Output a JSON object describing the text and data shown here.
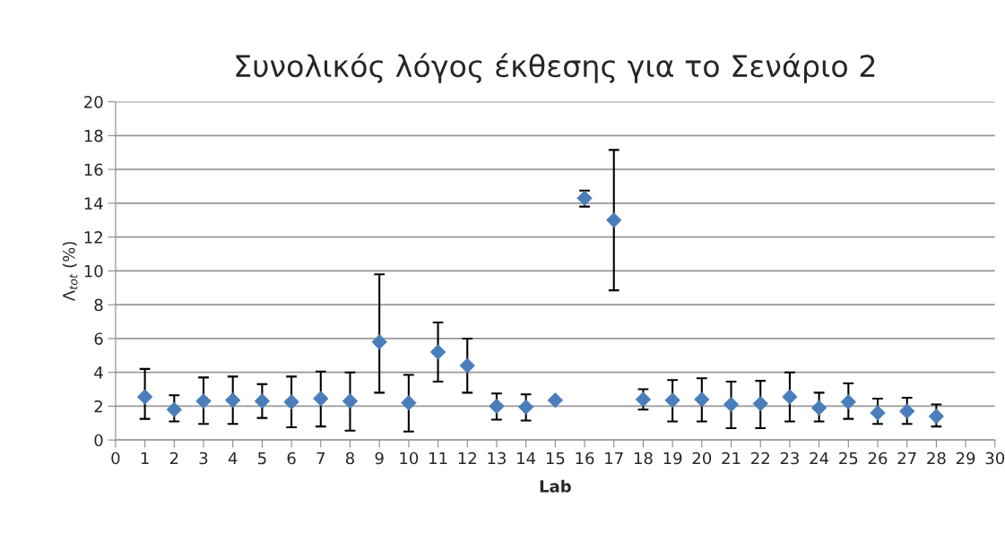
{
  "chart_data": {
    "type": "scatter",
    "title": "Συνολικός λόγος έκθεσης για το Σενάριο 2",
    "xlabel": "Lab",
    "ylabel": "Λ$_{tot}$ (%)",
    "x": [
      1,
      2,
      3,
      4,
      5,
      6,
      7,
      8,
      9,
      10,
      11,
      12,
      13,
      14,
      15,
      16,
      17,
      18,
      19,
      20,
      21,
      22,
      23,
      24,
      25,
      26,
      27,
      28
    ],
    "series": [
      {
        "color": "#4a7ebb",
        "values": [
          2.55,
          1.8,
          2.3,
          2.35,
          2.3,
          2.25,
          2.45,
          2.3,
          5.8,
          2.2,
          5.2,
          4.4,
          2.0,
          1.95,
          2.35,
          14.3,
          13.0,
          2.4,
          2.35,
          2.4,
          2.1,
          2.15,
          2.55,
          1.9,
          2.25,
          1.6,
          1.7,
          1.4
        ],
        "errors": [
          [
            1.25,
            4.2
          ],
          [
            1.1,
            2.65
          ],
          [
            0.95,
            3.7
          ],
          [
            0.95,
            3.75
          ],
          [
            1.3,
            3.3
          ],
          [
            0.75,
            3.75
          ],
          [
            0.8,
            4.05
          ],
          [
            0.55,
            4.0
          ],
          [
            2.8,
            9.8
          ],
          [
            0.5,
            3.85
          ],
          [
            3.45,
            6.95
          ],
          [
            2.8,
            6.0
          ],
          [
            1.2,
            2.75
          ],
          [
            1.15,
            2.7
          ],
          null,
          [
            13.8,
            14.75
          ],
          [
            8.85,
            17.15
          ],
          [
            1.8,
            3.0
          ],
          [
            1.1,
            3.55
          ],
          [
            1.1,
            3.65
          ],
          [
            0.7,
            3.45
          ],
          [
            0.7,
            3.5
          ],
          [
            1.1,
            4.0
          ],
          [
            1.1,
            2.8
          ],
          [
            1.25,
            3.35
          ],
          [
            0.95,
            2.45
          ],
          [
            0.95,
            2.5
          ],
          [
            0.8,
            2.1
          ]
        ]
      }
    ],
    "xlim": [
      0,
      30
    ],
    "xticks": [
      0,
      1,
      2,
      3,
      4,
      5,
      6,
      7,
      8,
      9,
      10,
      11,
      12,
      13,
      14,
      15,
      16,
      17,
      18,
      19,
      20,
      21,
      22,
      23,
      24,
      25,
      26,
      27,
      28,
      29,
      30
    ],
    "ylim": [
      0,
      20
    ],
    "yticks": [
      0,
      2,
      4,
      6,
      8,
      10,
      12,
      14,
      16,
      18,
      20
    ],
    "grid": "y",
    "marker": "diamond",
    "legend": false
  }
}
